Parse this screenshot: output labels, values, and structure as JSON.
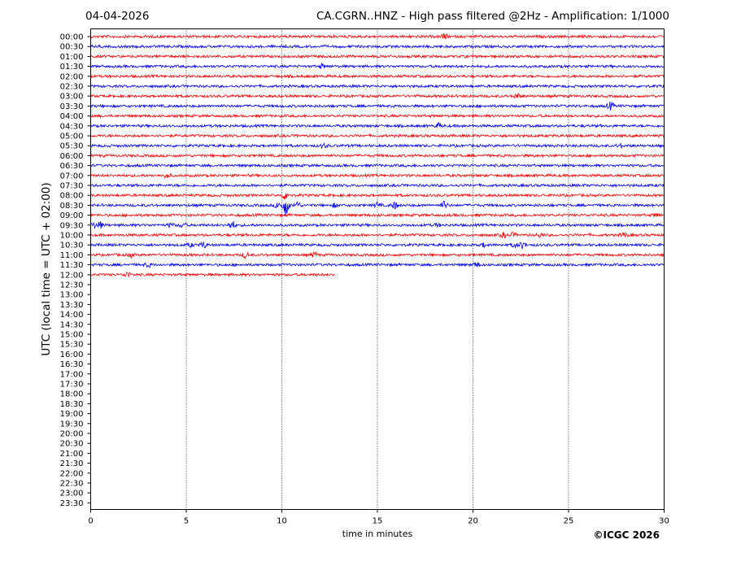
{
  "header": {
    "date": "04-04-2026",
    "title": "CA.CGRN..HNZ - High pass filtered @2Hz - Amplification: 1/1000"
  },
  "footer": {
    "credit": "©ICGC 2026"
  },
  "colors": {
    "trace_a": "#ff0000",
    "trace_b": "#0000ff",
    "grid": "#000000"
  },
  "chart_data": {
    "type": "line",
    "title": "CA.CGRN..HNZ - High pass filtered @2Hz - Amplification: 1/1000",
    "xlabel": "time in minutes",
    "ylabel": "UTC (local time = UTC + 02:00)",
    "xlim": [
      0,
      30
    ],
    "x_ticks": [
      0,
      5,
      10,
      15,
      20,
      25,
      30
    ],
    "grid": "vertical dotted lines at x ticks",
    "row_labels": [
      "00:00",
      "00:30",
      "01:00",
      "01:30",
      "02:00",
      "02:30",
      "03:00",
      "03:30",
      "04:00",
      "04:30",
      "05:00",
      "05:30",
      "06:00",
      "06:30",
      "07:00",
      "07:30",
      "08:00",
      "08:30",
      "09:00",
      "09:30",
      "10:00",
      "10:30",
      "11:00",
      "11:30",
      "12:00",
      "12:30",
      "13:00",
      "13:30",
      "14:00",
      "14:30",
      "15:00",
      "15:30",
      "16:00",
      "16:30",
      "17:00",
      "17:30",
      "18:00",
      "18:30",
      "19:00",
      "19:30",
      "20:00",
      "20:30",
      "21:00",
      "21:30",
      "22:00",
      "22:30",
      "23:00",
      "23:30"
    ],
    "trace_colors_alternate": [
      "red",
      "blue"
    ],
    "traces": [
      {
        "row": "00:00",
        "end_min": 30,
        "events": [
          {
            "t": 18.5,
            "amp": 0.6
          }
        ]
      },
      {
        "row": "00:30",
        "end_min": 30,
        "events": []
      },
      {
        "row": "01:00",
        "end_min": 30,
        "events": []
      },
      {
        "row": "01:30",
        "end_min": 30,
        "events": [
          {
            "t": 12.1,
            "amp": 0.4
          }
        ]
      },
      {
        "row": "02:00",
        "end_min": 30,
        "events": []
      },
      {
        "row": "02:30",
        "end_min": 30,
        "events": []
      },
      {
        "row": "03:00",
        "end_min": 30,
        "events": [
          {
            "t": 22.3,
            "amp": 0.6
          }
        ]
      },
      {
        "row": "03:30",
        "end_min": 30,
        "events": [
          {
            "t": 27.2,
            "amp": 0.8
          }
        ]
      },
      {
        "row": "04:00",
        "end_min": 30,
        "events": []
      },
      {
        "row": "04:30",
        "end_min": 30,
        "events": [
          {
            "t": 18.2,
            "amp": 0.5
          }
        ]
      },
      {
        "row": "05:00",
        "end_min": 30,
        "events": []
      },
      {
        "row": "05:30",
        "end_min": 30,
        "events": [
          {
            "t": 12.2,
            "amp": 0.4
          },
          {
            "t": 27.7,
            "amp": 0.4
          }
        ]
      },
      {
        "row": "06:00",
        "end_min": 30,
        "events": []
      },
      {
        "row": "06:30",
        "end_min": 30,
        "events": []
      },
      {
        "row": "07:00",
        "end_min": 30,
        "events": [
          {
            "t": 4.0,
            "amp": 0.5
          }
        ]
      },
      {
        "row": "07:30",
        "end_min": 30,
        "events": []
      },
      {
        "row": "08:00",
        "end_min": 30,
        "events": [
          {
            "t": 10.2,
            "amp": 0.9
          }
        ]
      },
      {
        "row": "08:30",
        "end_min": 30,
        "events": [
          {
            "t": 9.8,
            "amp": 0.6
          },
          {
            "t": 10.2,
            "amp": 2.2
          },
          {
            "t": 10.8,
            "amp": 0.8
          },
          {
            "t": 12.8,
            "amp": 0.4
          },
          {
            "t": 15.0,
            "amp": 0.5
          },
          {
            "t": 15.9,
            "amp": 0.7
          },
          {
            "t": 18.5,
            "amp": 0.8
          }
        ]
      },
      {
        "row": "09:00",
        "end_min": 30,
        "events": [
          {
            "t": 29.6,
            "amp": 0.4
          }
        ]
      },
      {
        "row": "09:30",
        "end_min": 30,
        "events": [
          {
            "t": 0.2,
            "amp": 0.5
          },
          {
            "t": 0.5,
            "amp": 0.6
          },
          {
            "t": 4.2,
            "amp": 0.4
          },
          {
            "t": 4.8,
            "amp": 0.5
          },
          {
            "t": 7.4,
            "amp": 0.9
          },
          {
            "t": 18.1,
            "amp": 0.3
          }
        ]
      },
      {
        "row": "10:00",
        "end_min": 30,
        "events": [
          {
            "t": 21.6,
            "amp": 0.5
          },
          {
            "t": 22.1,
            "amp": 0.4
          },
          {
            "t": 23.5,
            "amp": 0.4
          },
          {
            "t": 27.9,
            "amp": 0.5
          }
        ]
      },
      {
        "row": "10:30",
        "end_min": 30,
        "events": [
          {
            "t": 5.2,
            "amp": 0.4
          },
          {
            "t": 5.9,
            "amp": 0.6
          },
          {
            "t": 20.6,
            "amp": 0.4
          },
          {
            "t": 22.2,
            "amp": 0.5
          },
          {
            "t": 22.6,
            "amp": 0.7
          }
        ]
      },
      {
        "row": "11:00",
        "end_min": 30,
        "events": [
          {
            "t": 2.1,
            "amp": 0.4
          },
          {
            "t": 8.1,
            "amp": 0.6
          },
          {
            "t": 11.7,
            "amp": 0.5
          }
        ]
      },
      {
        "row": "11:30",
        "end_min": 30,
        "events": [
          {
            "t": 3.0,
            "amp": 0.4
          },
          {
            "t": 20.2,
            "amp": 0.5
          }
        ]
      },
      {
        "row": "12:00",
        "end_min": 12.8,
        "events": [
          {
            "t": 1.9,
            "amp": 0.5
          }
        ]
      }
    ]
  }
}
